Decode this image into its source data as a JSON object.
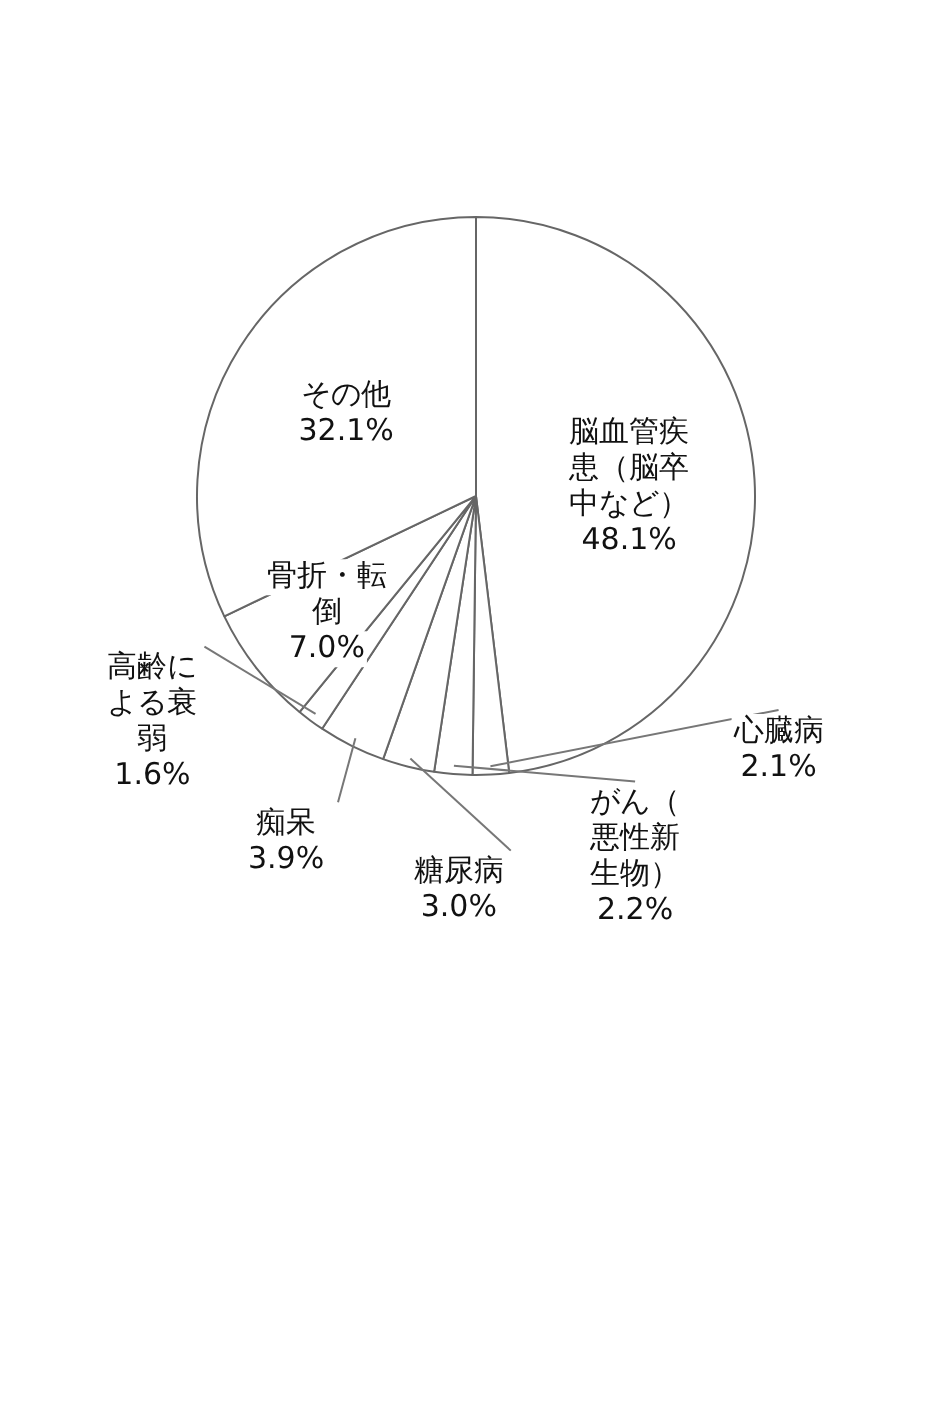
{
  "chart_data": {
    "type": "pie",
    "categories": [
      "脳血管疾患（脳卒中など）",
      "心臓病",
      "がん（悪性新生物）",
      "糖尿病",
      "痴呆",
      "高齢による衰弱",
      "骨折・転倒",
      "その他"
    ],
    "values": [
      48.1,
      2.1,
      2.2,
      3.0,
      3.9,
      1.6,
      7.0,
      32.1
    ],
    "value_labels": [
      "48.1%",
      "2.1%",
      "2.2%",
      "3.0%",
      "3.9%",
      "1.6%",
      "7.0%",
      "32.1%"
    ],
    "colors": [
      "#ffffff",
      "#ffffff",
      "#ffffff",
      "#ffffff",
      "#ffffff",
      "#ffffff",
      "#ffffff",
      "#ffffff"
    ],
    "legend": false
  }
}
